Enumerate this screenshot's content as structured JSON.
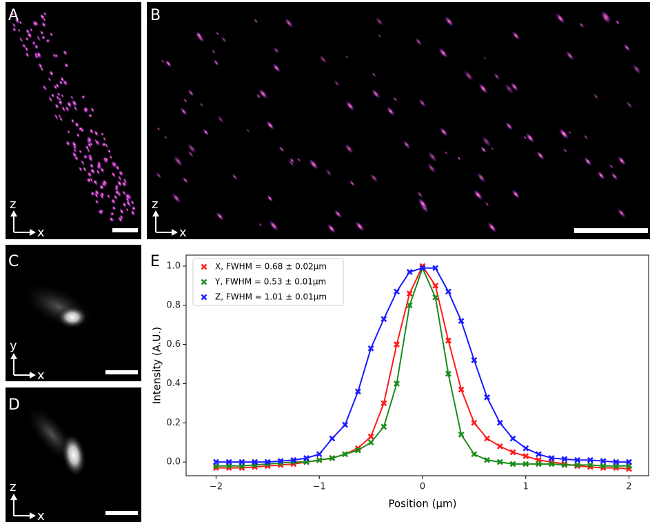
{
  "panels": [
    {
      "label": "A",
      "axes": [
        "z",
        "x"
      ]
    },
    {
      "label": "B",
      "axes": [
        "z",
        "x"
      ]
    },
    {
      "label": "C",
      "axes": [
        "y",
        "x"
      ]
    },
    {
      "label": "D",
      "axes": [
        "z",
        "x"
      ]
    },
    {
      "label": "E"
    }
  ],
  "chart_data": {
    "type": "line",
    "xlabel": "Position (μm)",
    "ylabel": "Intensity (A.U.)",
    "x": [
      -2.0,
      -1.875,
      -1.75,
      -1.625,
      -1.5,
      -1.375,
      -1.25,
      -1.125,
      -1.0,
      -0.875,
      -0.75,
      -0.625,
      -0.5,
      -0.375,
      -0.25,
      -0.125,
      0.0,
      0.125,
      0.25,
      0.375,
      0.5,
      0.625,
      0.75,
      0.875,
      1.0,
      1.125,
      1.25,
      1.375,
      1.5,
      1.625,
      1.75,
      1.875,
      2.0
    ],
    "series": [
      {
        "name": "X, FWHM = 0.68 ± 0.02μm",
        "color": "#ff1a1a",
        "values": [
          -0.03,
          -0.03,
          -0.03,
          -0.025,
          -0.02,
          -0.015,
          -0.01,
          0.0,
          0.01,
          0.02,
          0.04,
          0.07,
          0.13,
          0.3,
          0.6,
          0.86,
          1.0,
          0.9,
          0.62,
          0.37,
          0.2,
          0.12,
          0.08,
          0.05,
          0.03,
          0.01,
          0.0,
          -0.01,
          -0.02,
          -0.025,
          -0.03,
          -0.03,
          -0.035
        ]
      },
      {
        "name": "Y, FWHM = 0.53 ± 0.01μm",
        "color": "#1a8c1a",
        "values": [
          -0.02,
          -0.02,
          -0.02,
          -0.015,
          -0.01,
          -0.005,
          0.0,
          0.0,
          0.01,
          0.02,
          0.04,
          0.06,
          0.1,
          0.18,
          0.4,
          0.8,
          0.99,
          0.84,
          0.45,
          0.14,
          0.04,
          0.01,
          0.0,
          -0.01,
          -0.01,
          -0.01,
          -0.01,
          -0.015,
          -0.015,
          -0.015,
          -0.02,
          -0.02,
          -0.02
        ]
      },
      {
        "name": "Z, FWHM = 1.01 ± 0.01μm",
        "color": "#1a1aff",
        "values": [
          0.0,
          0.0,
          0.0,
          0.0,
          0.0,
          0.005,
          0.01,
          0.02,
          0.04,
          0.12,
          0.19,
          0.36,
          0.58,
          0.73,
          0.87,
          0.97,
          0.99,
          0.99,
          0.87,
          0.72,
          0.52,
          0.33,
          0.2,
          0.12,
          0.07,
          0.04,
          0.02,
          0.015,
          0.01,
          0.01,
          0.005,
          0.0,
          0.0
        ]
      }
    ],
    "xlim": [
      -2.29,
      2.19
    ],
    "ylim": [
      -0.07,
      1.056
    ],
    "xticks": [
      {
        "value": -2,
        "label": "−2"
      },
      {
        "value": -1,
        "label": "−1"
      },
      0,
      1,
      2
    ],
    "yticks": [
      {
        "value": 0,
        "label": "0.0"
      },
      {
        "value": 0.2,
        "label": "0.2"
      },
      {
        "value": 0.4,
        "label": "0.4"
      },
      {
        "value": 0.6,
        "label": "0.6"
      },
      {
        "value": 0.8,
        "label": "0.8"
      },
      {
        "value": 1.0,
        "label": "1.0"
      }
    ],
    "legend": "upper left",
    "grid": false
  }
}
